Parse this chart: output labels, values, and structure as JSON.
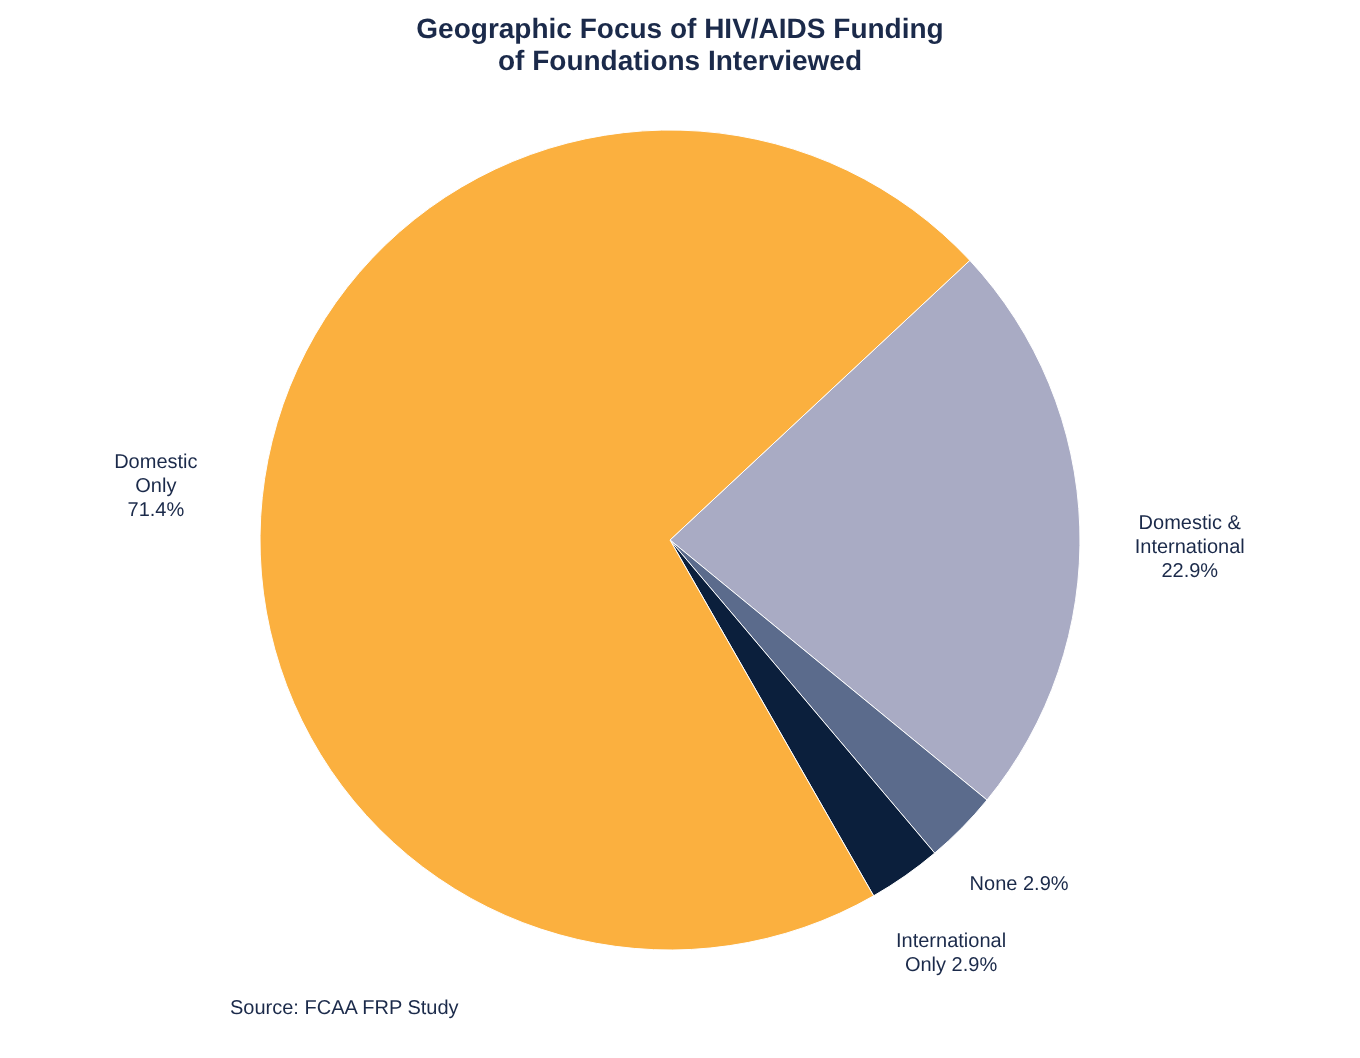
{
  "chart_data": {
    "type": "pie",
    "title": [
      "Geographic Focus of HIV/AIDS Funding",
      "of Foundations Interviewed"
    ],
    "categories": [
      "Domestic & International",
      "None",
      "International Only",
      "Domestic Only"
    ],
    "values": [
      22.9,
      2.9,
      2.9,
      71.4
    ],
    "value_labels": [
      "22.9%",
      "2.9%",
      "2.9%",
      "71.4%"
    ],
    "colors": [
      "#a9abc4",
      "#5b6b8c",
      "#0b1f3c",
      "#fbb03f"
    ],
    "annotations": [
      "Source: FCAA FRP Study"
    ]
  }
}
